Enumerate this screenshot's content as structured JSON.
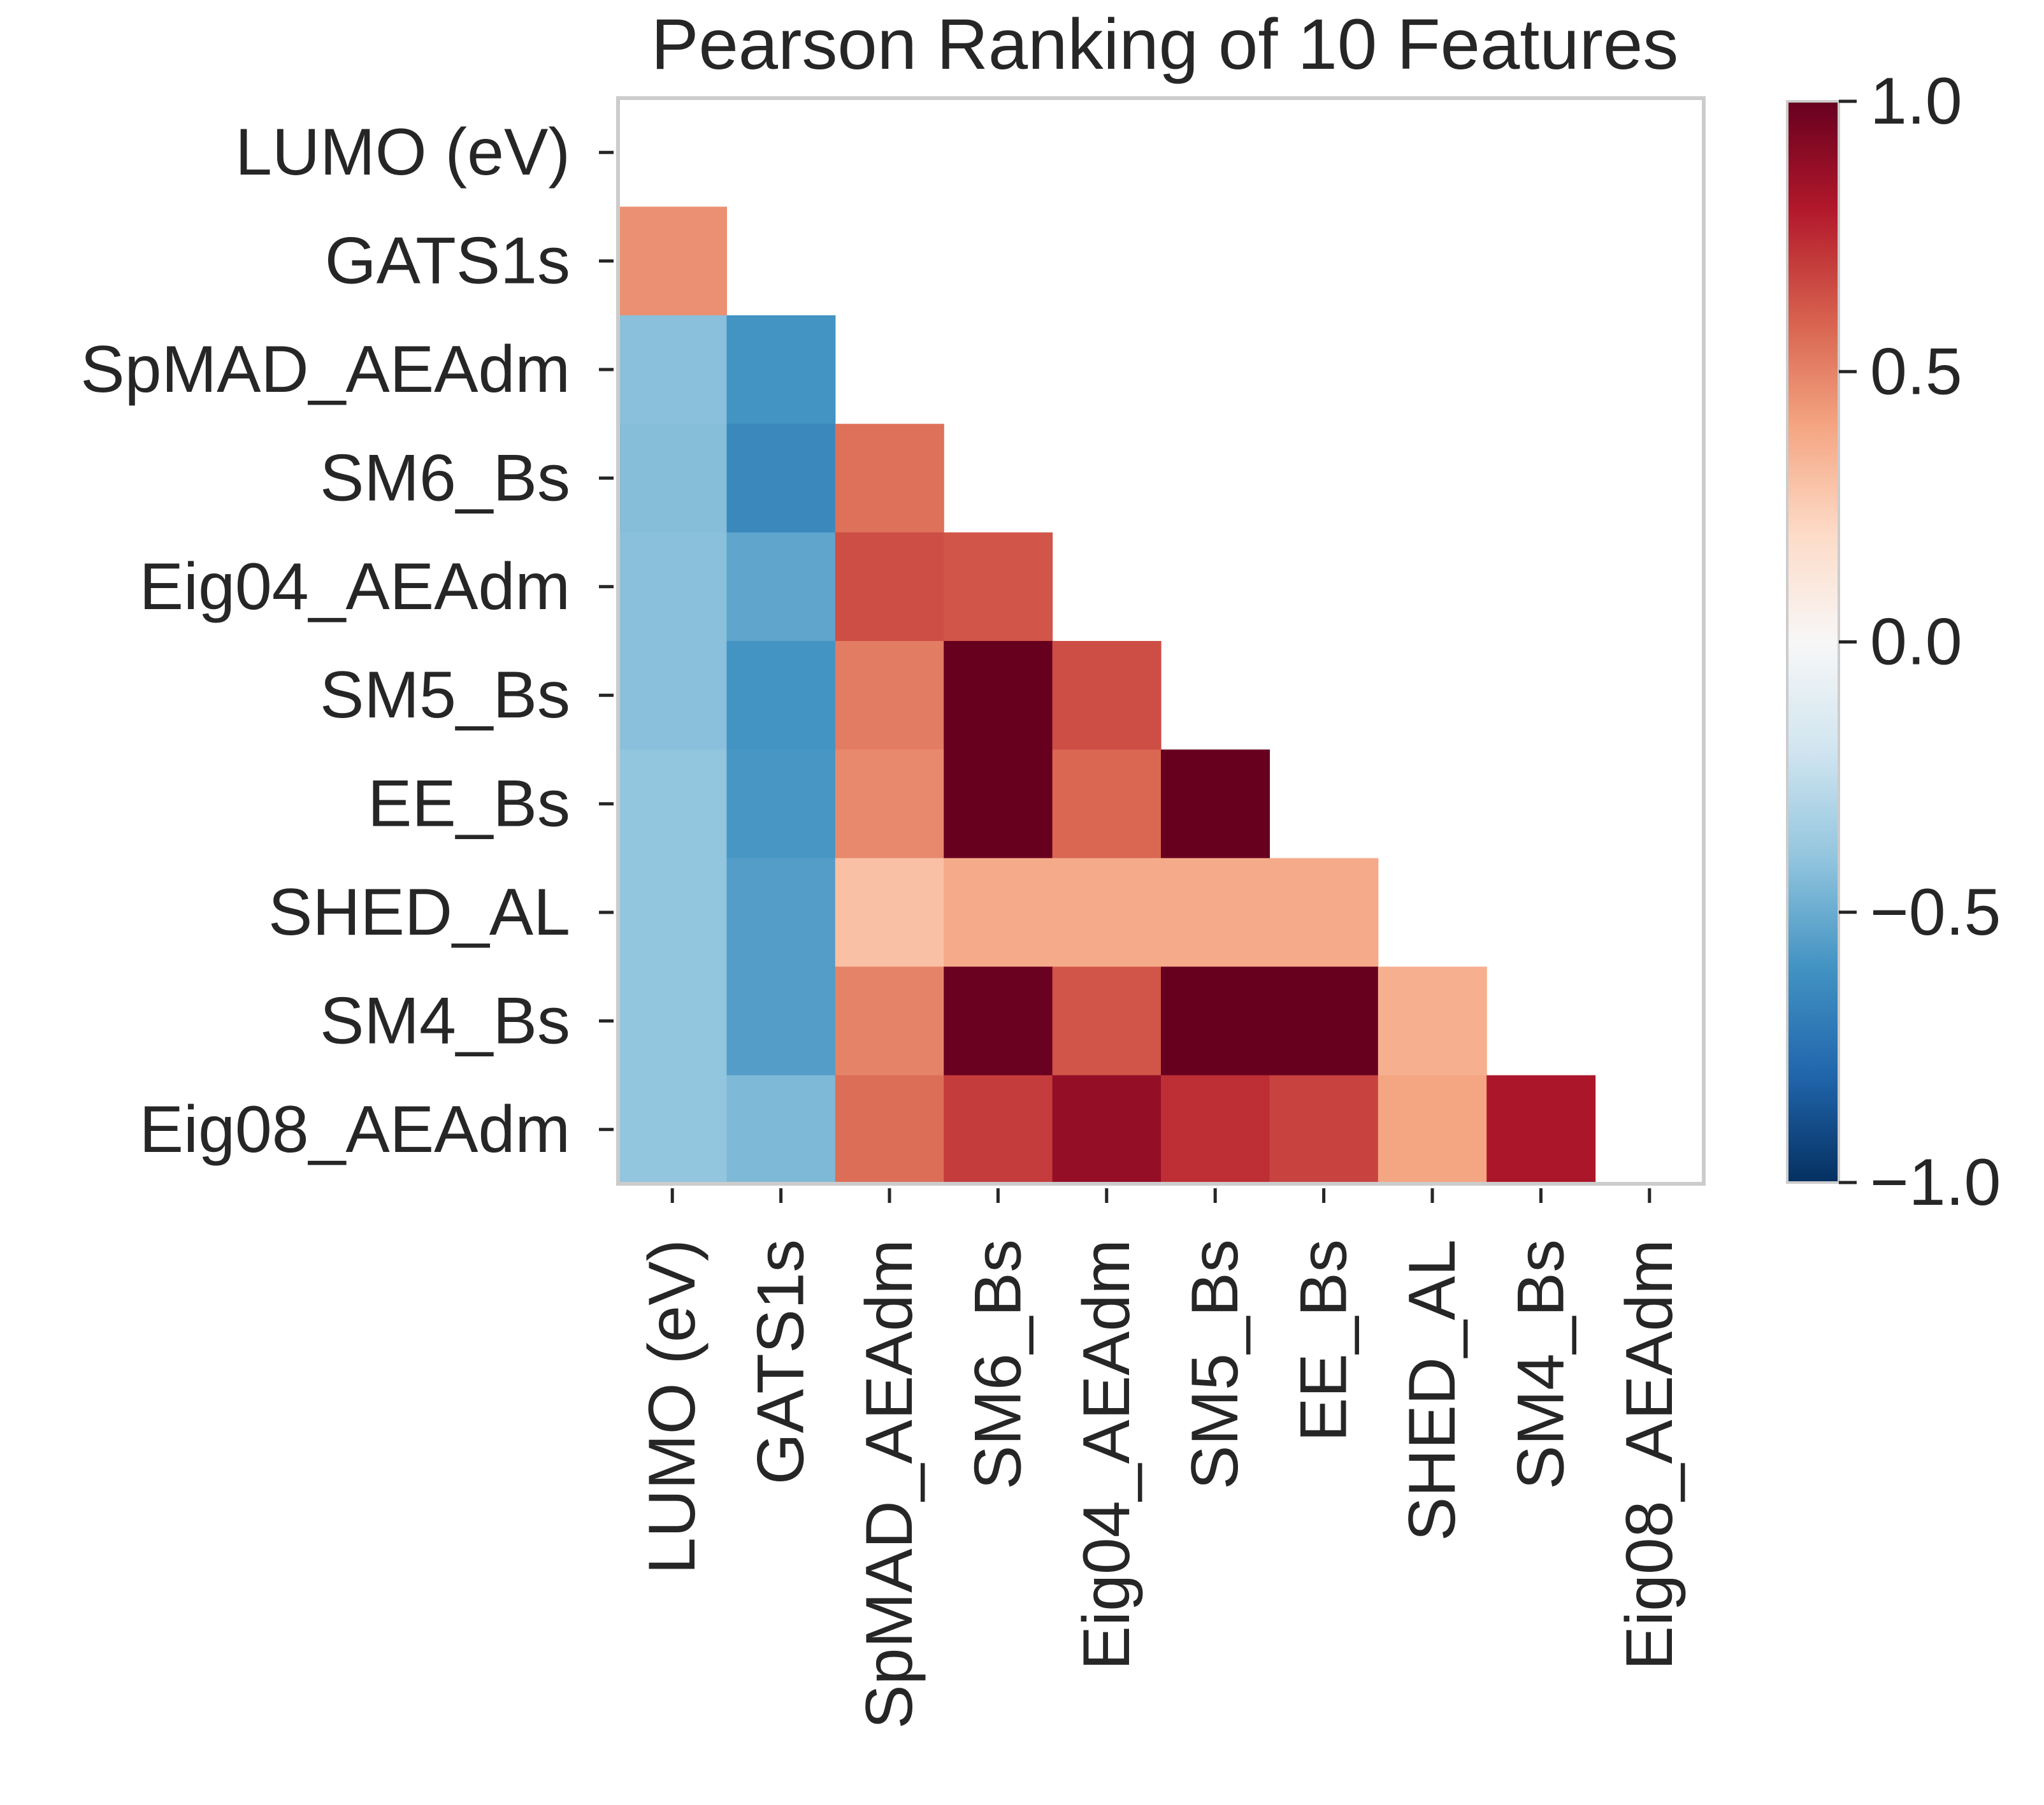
{
  "chart_data": {
    "type": "heatmap",
    "title": "Pearson Ranking of 10 Features",
    "mask": "upper triangle incl. diagonal",
    "row_labels": [
      "LUMO (eV)",
      "GATS1s",
      "SpMAD_AEAdm",
      "SM6_Bs",
      "Eig04_AEAdm",
      "SM5_Bs",
      "EE_Bs",
      "SHED_AL",
      "SM4_Bs",
      "Eig08_AEAdm"
    ],
    "col_labels": [
      "LUMO (eV)",
      "GATS1s",
      "SpMAD_AEAdm",
      "SM6_Bs",
      "Eig04_AEAdm",
      "SM5_Bs",
      "EE_Bs",
      "SHED_AL",
      "SM4_Bs",
      "Eig08_AEAdm"
    ],
    "values": [
      [
        null,
        null,
        null,
        null,
        null,
        null,
        null,
        null,
        null,
        null
      ],
      [
        0.46,
        null,
        null,
        null,
        null,
        null,
        null,
        null,
        null,
        null
      ],
      [
        -0.42,
        -0.6,
        null,
        null,
        null,
        null,
        null,
        null,
        null,
        null
      ],
      [
        -0.43,
        -0.65,
        0.55,
        null,
        null,
        null,
        null,
        null,
        null,
        null
      ],
      [
        -0.42,
        -0.53,
        0.65,
        0.63,
        null,
        null,
        null,
        null,
        null,
        null
      ],
      [
        -0.42,
        -0.6,
        0.52,
        1.0,
        0.65,
        null,
        null,
        null,
        null,
        null
      ],
      [
        -0.4,
        -0.59,
        0.48,
        1.0,
        0.58,
        1.0,
        null,
        null,
        null,
        null
      ],
      [
        -0.4,
        -0.56,
        0.3,
        0.38,
        0.38,
        0.38,
        0.38,
        null,
        null,
        null
      ],
      [
        -0.4,
        -0.56,
        0.5,
        0.99,
        0.63,
        1.0,
        1.0,
        0.36,
        null,
        null
      ],
      [
        -0.4,
        -0.45,
        0.56,
        0.7,
        0.88,
        0.74,
        0.68,
        0.4,
        0.82,
        null
      ]
    ],
    "vmin": -1.0,
    "vmax": 1.0,
    "colormap": "RdBu_r",
    "colorbar_ticks": [
      1.0,
      0.5,
      0.0,
      -0.5,
      -1.0
    ],
    "colorbar_tick_labels": [
      "1.0",
      "0.5",
      "0.0",
      "−0.5",
      "−1.0"
    ]
  }
}
